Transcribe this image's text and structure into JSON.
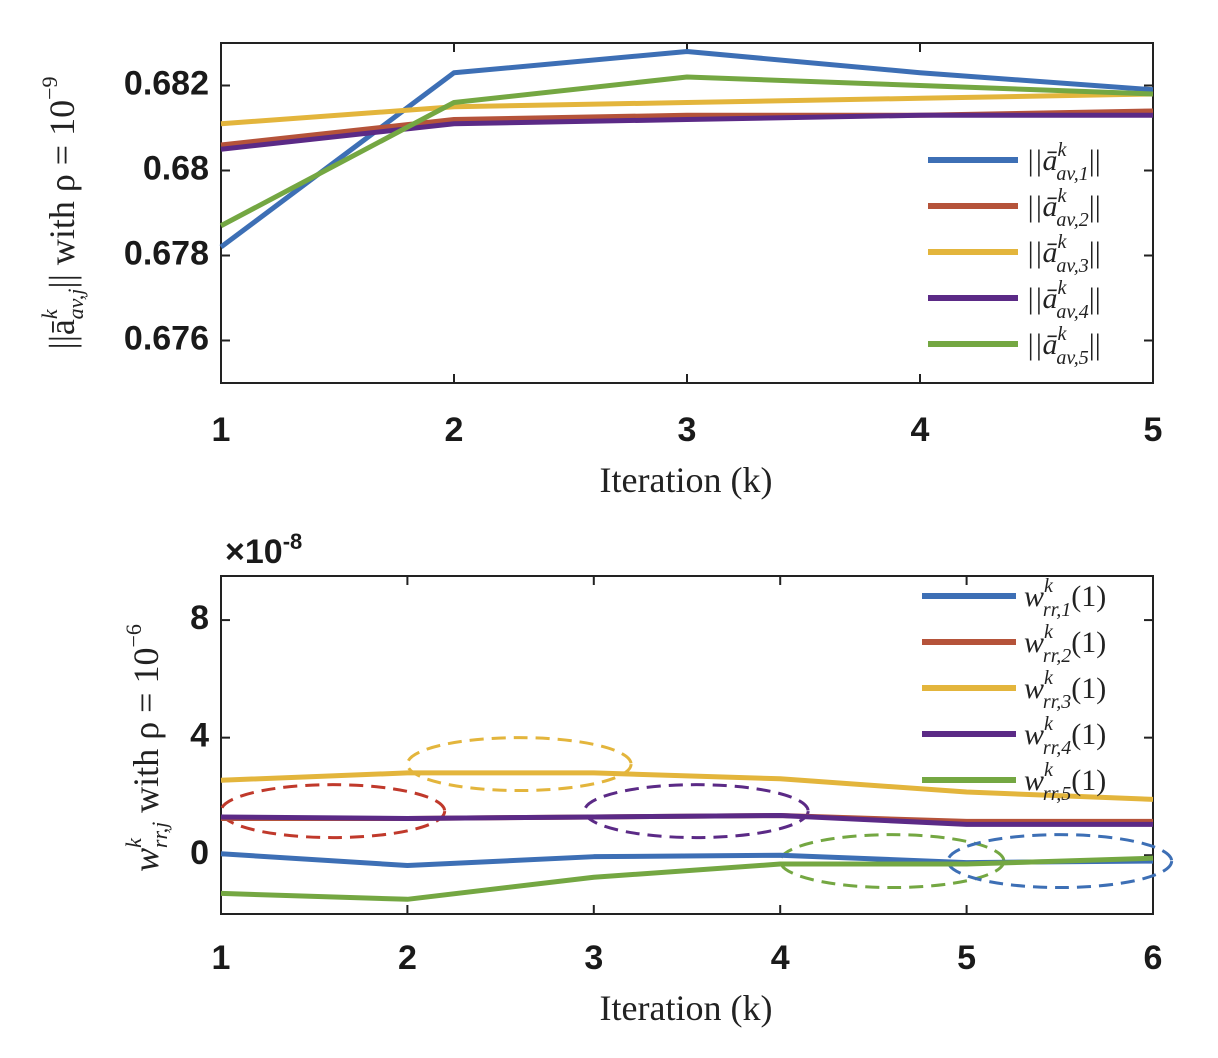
{
  "chart_data": [
    {
      "type": "line",
      "xlabel": "Iteration (k)",
      "ylabel_parts": [
        "||ā",
        "k",
        "av,j",
        "|| with ρ = 10",
        "−9"
      ],
      "x": [
        1,
        2,
        3,
        4,
        5
      ],
      "xlim": [
        1,
        5
      ],
      "ylim": [
        0.675,
        0.683
      ],
      "yticks": [
        0.676,
        0.678,
        0.68,
        0.682
      ],
      "ytick_labels": [
        "0.676",
        "0.678",
        "0.68",
        "0.682"
      ],
      "xtick_labels": [
        "1",
        "2",
        "3",
        "4",
        "5"
      ],
      "legend_position": "bottom-right",
      "series": [
        {
          "name": "||ā_av,1^k||",
          "legend_pre": "||ā",
          "sup": "k",
          "sub": "av,1",
          "legend_post": "||",
          "color": "#3d6fb5",
          "values": [
            0.6782,
            0.6823,
            0.6828,
            0.6823,
            0.6819
          ]
        },
        {
          "name": "||ā_av,2^k||",
          "legend_pre": "||ā",
          "sup": "k",
          "sub": "av,2",
          "legend_post": "||",
          "color": "#b5533a",
          "values": [
            0.6806,
            0.6812,
            0.6813,
            0.6813,
            0.6814
          ]
        },
        {
          "name": "||ā_av,3^k||",
          "legend_pre": "||ā",
          "sup": "k",
          "sub": "av,3",
          "legend_post": "||",
          "color": "#e3b53c",
          "values": [
            0.6811,
            0.6815,
            0.6816,
            0.6817,
            0.6818
          ]
        },
        {
          "name": "||ā_av,4^k||",
          "legend_pre": "||ā",
          "sup": "k",
          "sub": "av,4",
          "legend_post": "||",
          "color": "#5b2a86",
          "values": [
            0.6805,
            0.6811,
            0.6812,
            0.6813,
            0.6813
          ]
        },
        {
          "name": "||ā_av,5^k||",
          "legend_pre": "||ā",
          "sup": "k",
          "sub": "av,5",
          "legend_post": "||",
          "color": "#74a742",
          "values": [
            0.6787,
            0.6816,
            0.6822,
            0.682,
            0.6818
          ]
        }
      ]
    },
    {
      "type": "line",
      "xlabel": "Iteration (k)",
      "ylabel_parts": [
        "w",
        "k",
        "rr,j",
        " with ρ = 10",
        "−6"
      ],
      "exponent_label": "×10",
      "exponent_power": "-8",
      "x": [
        1,
        2,
        3,
        4,
        5,
        6
      ],
      "xlim": [
        1,
        6
      ],
      "ylim": [
        -2,
        9.5
      ],
      "yticks": [
        0,
        4,
        8
      ],
      "ytick_labels": [
        "0",
        "4",
        "8"
      ],
      "xtick_labels": [
        "1",
        "2",
        "3",
        "4",
        "5",
        "6"
      ],
      "legend_position": "top-right",
      "series": [
        {
          "name": "w_rr,1^k(1)",
          "legend_pre": "w",
          "sup": "k",
          "sub": "rr,1",
          "legend_post": "(1)",
          "color": "#3d6fb5",
          "values": [
            0.05,
            -0.35,
            -0.05,
            0.0,
            -0.25,
            -0.2
          ]
        },
        {
          "name": "w_rr,2^k(1)",
          "legend_pre": "w",
          "sup": "k",
          "sub": "rr,2",
          "legend_post": "(1)",
          "color": "#b5533a",
          "values": [
            1.25,
            1.25,
            1.3,
            1.35,
            1.15,
            1.15
          ]
        },
        {
          "name": "w_rr,3^k(1)",
          "legend_pre": "w",
          "sup": "k",
          "sub": "rr,3",
          "legend_post": "(1)",
          "color": "#e3b53c",
          "values": [
            2.55,
            2.8,
            2.8,
            2.6,
            2.15,
            1.9
          ]
        },
        {
          "name": "w_rr,4^k(1)",
          "legend_pre": "w",
          "sup": "k",
          "sub": "rr,4",
          "legend_post": "(1)",
          "color": "#5b2a86",
          "values": [
            1.3,
            1.25,
            1.3,
            1.35,
            1.05,
            1.05
          ]
        },
        {
          "name": "w_rr,5^k(1)",
          "legend_pre": "w",
          "sup": "k",
          "sub": "rr,5",
          "legend_post": "(1)",
          "color": "#74a742",
          "values": [
            -1.3,
            -1.5,
            -0.75,
            -0.3,
            -0.3,
            -0.1
          ]
        }
      ],
      "annotations": [
        {
          "shape": "dashed-ellipse",
          "color": "#c0392b",
          "x_center": 1.6,
          "y_center": 1.5,
          "x_radius": 0.6,
          "y_radius": 0.9
        },
        {
          "shape": "dashed-ellipse",
          "color": "#e3b53c",
          "x_center": 2.6,
          "y_center": 3.1,
          "x_radius": 0.6,
          "y_radius": 0.9
        },
        {
          "shape": "dashed-ellipse",
          "color": "#5b2a86",
          "x_center": 3.55,
          "y_center": 1.5,
          "x_radius": 0.6,
          "y_radius": 0.9
        },
        {
          "shape": "dashed-ellipse",
          "color": "#74a742",
          "x_center": 4.6,
          "y_center": -0.2,
          "x_radius": 0.6,
          "y_radius": 0.9
        },
        {
          "shape": "dashed-ellipse",
          "color": "#3d6fb5",
          "x_center": 5.5,
          "y_center": -0.2,
          "x_radius": 0.6,
          "y_radius": 0.9
        }
      ]
    }
  ]
}
